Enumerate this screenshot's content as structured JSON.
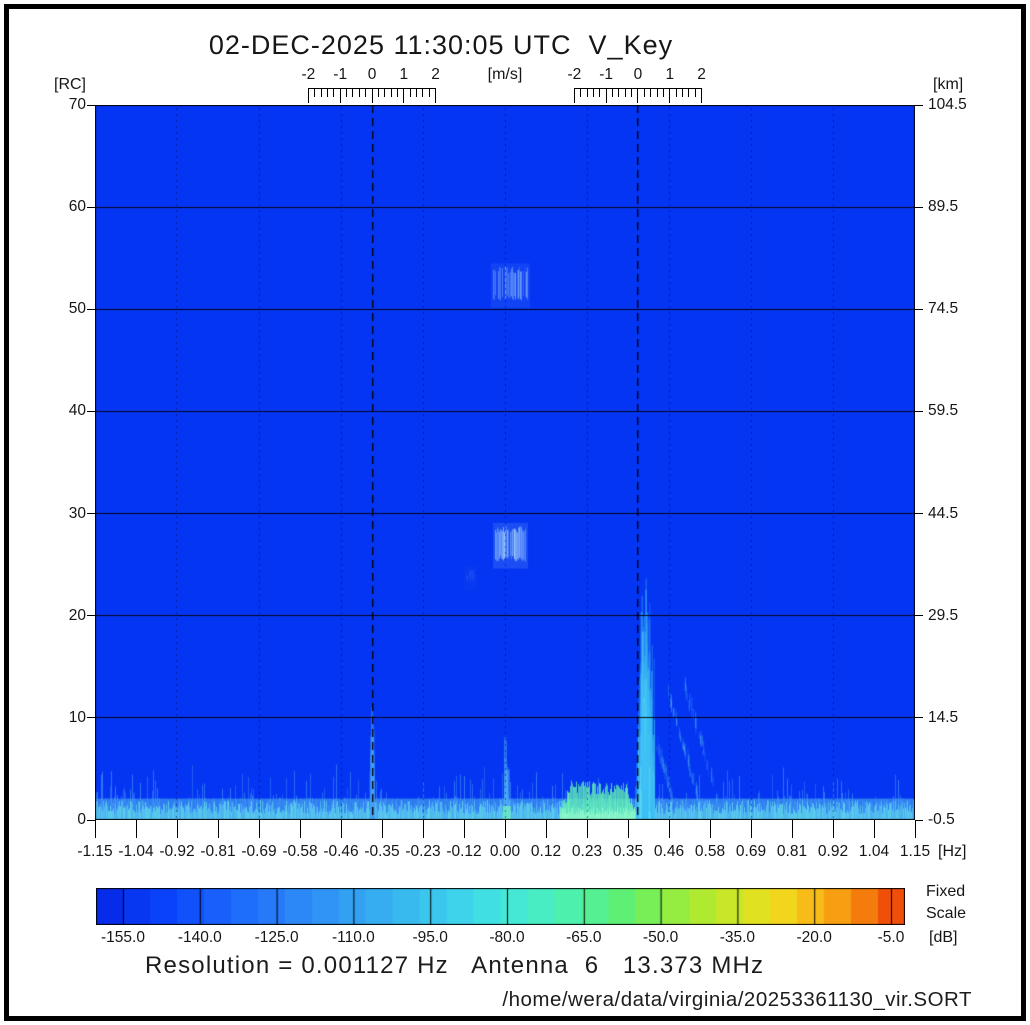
{
  "title": "02-DEC-2025 11:30:05 UTC  V_Key",
  "labels": {
    "rc_unit": "[RC]",
    "km_unit": "[km]",
    "hz_unit": "[Hz]",
    "ms_unit": "[m/s]",
    "db_unit": "[dB]",
    "scale_mode_line1": "Fixed",
    "scale_mode_line2": "Scale"
  },
  "footer": {
    "resolution_line": "Resolution = 0.001127 Hz   Antenna  6   13.373 MHz",
    "file_path": "/home/wera/data/virginia/20253361130_vir.SORT"
  },
  "chart_data": {
    "type": "heatmap",
    "title": "02-DEC-2025 11:30:05 UTC  V_Key",
    "description": "WERA HF radar Doppler power spectrum: range cell vs Doppler frequency, power in dB",
    "x_axis": {
      "unit": "[Hz]",
      "min": -1.15,
      "max": 1.15,
      "tick_labels": [
        "-1.15",
        "-1.04",
        "-0.92",
        "-0.81",
        "-0.69",
        "-0.58",
        "-0.46",
        "-0.35",
        "-0.23",
        "-0.12",
        "0.00",
        "0.12",
        "0.23",
        "0.35",
        "0.46",
        "0.58",
        "0.69",
        "0.81",
        "0.92",
        "1.04",
        "1.15"
      ]
    },
    "y_axis_left": {
      "unit": "[RC]",
      "min": 0,
      "max": 70,
      "tick_labels": [
        "70",
        "60",
        "50",
        "40",
        "30",
        "20",
        "10",
        "0"
      ]
    },
    "y_axis_right": {
      "unit": "[km]",
      "tick_labels": [
        "104.5",
        "89.5",
        "74.5",
        "59.5",
        "44.5",
        "29.5",
        "14.5",
        "-0.5"
      ]
    },
    "velocity_axes": {
      "unit": "[m/s]",
      "tick_labels": [
        "-2",
        "-1",
        "0",
        "1",
        "2"
      ],
      "centers_hz": [
        -0.373,
        0.373
      ],
      "hz_per_mps": 0.0892
    },
    "grid": {
      "h_lines_rc": [
        10,
        20,
        30,
        40,
        50,
        60
      ],
      "v_dotted_hz": [
        -0.92,
        -0.69,
        -0.46,
        -0.23,
        0.0,
        0.23,
        0.46,
        0.69,
        0.92
      ],
      "bragg_dashed_hz": [
        -0.373,
        0.373
      ]
    },
    "background": {
      "color": "#0435f3",
      "level_db": -155
    },
    "features": [
      {
        "kind": "base_band",
        "label": "near-range-noise-floor",
        "rc_top": 2.1,
        "rgb": [
          88,
          196,
          240
        ],
        "alpha": 0.5
      },
      {
        "kind": "noise_columns",
        "label": "bottom-noise-spikes",
        "mid_rgb": [
          70,
          155,
          246
        ],
        "bright_rgb": [
          95,
          215,
          235
        ]
      },
      {
        "kind": "green_band",
        "label": "strong-near-range-echo",
        "x_range": [
          0.155,
          0.366
        ],
        "rc_typ": 2.6,
        "rgb": [
          100,
          244,
          178
        ],
        "core_rgb": [
          150,
          250,
          205
        ]
      },
      {
        "kind": "plume",
        "label": "right-bragg-plume",
        "center_hz": 0.392,
        "spread_hz": 0.034,
        "rc_max": 22,
        "count": 340,
        "rgb": [
          [
            60,
            190,
            245
          ],
          [
            120,
            235,
            250
          ]
        ]
      },
      {
        "kind": "plume",
        "label": "left-bragg-plume",
        "center_hz": -0.374,
        "spread_hz": 0.008,
        "rc_max": 11,
        "count": 90,
        "rgb": [
          [
            70,
            160,
            245
          ]
        ]
      },
      {
        "kind": "plume",
        "label": "zero-hz-plume",
        "center_hz": 0.002,
        "spread_hz": 0.009,
        "rc_max": 8,
        "count": 95,
        "rgb": [
          [
            80,
            170,
            246
          ]
        ],
        "green_base": true
      },
      {
        "kind": "diag",
        "label": "ship-echo-streak",
        "from": [
          0.455,
          12
        ],
        "to": [
          0.545,
          1.2
        ],
        "alpha": 0.5
      },
      {
        "kind": "diag",
        "label": "ship-echo-streak",
        "from": [
          0.5,
          13
        ],
        "to": [
          0.6,
          1.0
        ],
        "alpha": 0.4
      },
      {
        "kind": "diag",
        "label": "ship-echo-streak",
        "from": [
          0.425,
          7
        ],
        "to": [
          0.47,
          1.5
        ],
        "alpha": 0.35
      },
      {
        "kind": "patch",
        "label": "target-echo-upper",
        "x_range": [
          -0.033,
          0.063
        ],
        "rc_range": [
          50.8,
          54.2
        ],
        "base": [
          120,
          170,
          250
        ],
        "hi": [
          165,
          212,
          253
        ],
        "intensity": 0.7
      },
      {
        "kind": "patch",
        "label": "target-echo-lower",
        "x_range": [
          -0.028,
          0.058
        ],
        "rc_range": [
          25.3,
          28.8
        ],
        "base": [
          140,
          195,
          252
        ],
        "hi": [
          190,
          232,
          254
        ],
        "intensity": 0.95
      },
      {
        "kind": "patch",
        "label": "faint-smudge",
        "x_range": [
          -0.108,
          -0.085
        ],
        "rc_range": [
          23.2,
          24.6
        ],
        "base": [
          60,
          110,
          246
        ],
        "hi": [
          70,
          130,
          248
        ],
        "intensity": 0.4
      }
    ],
    "colorbar": {
      "unit": "[dB]",
      "scale_mode": "Fixed Scale",
      "tick_labels": [
        "-155.0",
        "-140.0",
        "-125.0",
        "-110.0",
        "-95.0",
        "-80.0",
        "-65.0",
        "-50.0",
        "-35.0",
        "-20.0",
        "-5.0"
      ],
      "tick_values_db": [
        -155,
        -140,
        -125,
        -110,
        -95,
        -80,
        -65,
        -50,
        -35,
        -20,
        -5
      ],
      "segments": 30,
      "stops": [
        [
          0,
          "#0726e4"
        ],
        [
          0.08,
          "#0841fa"
        ],
        [
          0.16,
          "#1a63fc"
        ],
        [
          0.24,
          "#2b84f8"
        ],
        [
          0.32,
          "#33a2f2"
        ],
        [
          0.4,
          "#3ac0ee"
        ],
        [
          0.47,
          "#3fdbe8"
        ],
        [
          0.53,
          "#45ecd0"
        ],
        [
          0.59,
          "#4ef0a8"
        ],
        [
          0.645,
          "#5af078"
        ],
        [
          0.7,
          "#86ee48"
        ],
        [
          0.755,
          "#b4ea2e"
        ],
        [
          0.81,
          "#dce422"
        ],
        [
          0.855,
          "#f4d41c"
        ],
        [
          0.9,
          "#f8ae16"
        ],
        [
          0.945,
          "#f5820e"
        ],
        [
          0.975,
          "#f05c0a"
        ],
        [
          1,
          "#ee3408"
        ]
      ]
    }
  }
}
